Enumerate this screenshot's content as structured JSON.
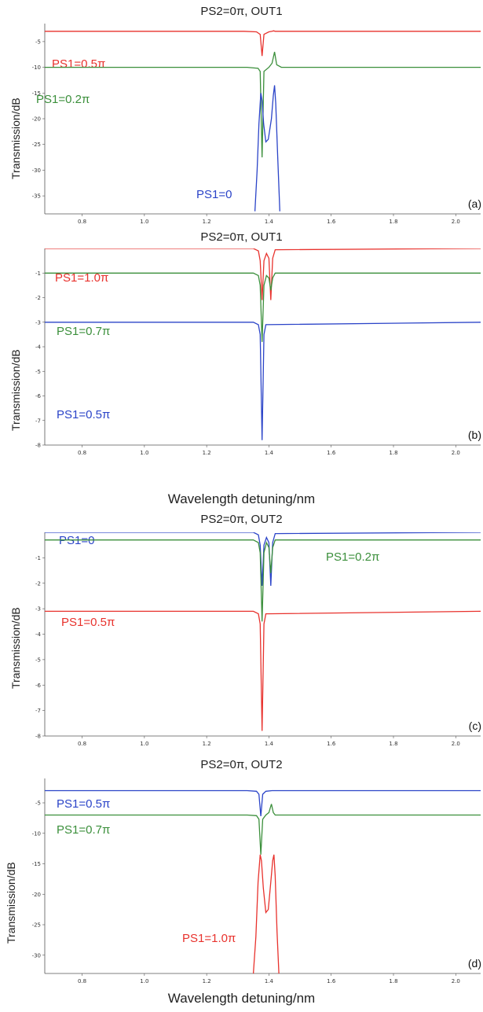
{
  "xlabel": "Wavelength detuning/nm",
  "chart_data": [
    {
      "type": "line",
      "title": "PS2=0π, OUT1",
      "ylabel": "Transmission/dB",
      "xlabel": "",
      "letter": "(a)",
      "xlim": [
        0.68,
        2.08
      ],
      "ylim": [
        -38.5,
        -1.5
      ],
      "xticks": [
        "0.8",
        "1.0",
        "1.2",
        "1.4",
        "1.6",
        "1.8",
        "2.0"
      ],
      "yticks": [
        "-5",
        "-10",
        "-15",
        "-20",
        "-25",
        "-30",
        "-35"
      ],
      "series": [
        {
          "name": "PS1=0.5π",
          "color": "#e8322d",
          "x": [
            0.68,
            1.32,
            1.36,
            1.372,
            1.378,
            1.384,
            1.4,
            1.41,
            1.415,
            1.42,
            1.44,
            2.08
          ],
          "y": [
            -3.0,
            -3.0,
            -3.1,
            -3.6,
            -7.8,
            -3.6,
            -3.1,
            -3.0,
            -2.9,
            -3.0,
            -3.0,
            -3.0
          ]
        },
        {
          "name": "PS1=0.2π",
          "color": "#3b8f3b",
          "x": [
            0.68,
            1.33,
            1.365,
            1.372,
            1.378,
            1.384,
            1.4,
            1.41,
            1.418,
            1.425,
            1.44,
            2.08
          ],
          "y": [
            -10.0,
            -10.0,
            -10.2,
            -10.8,
            -27.5,
            -10.8,
            -10.0,
            -9.2,
            -7.0,
            -9.5,
            -10.0,
            -10.0
          ]
        },
        {
          "name": "PS1=0",
          "color": "#2b44c8",
          "x": [
            1.355,
            1.362,
            1.368,
            1.374,
            1.378,
            1.383,
            1.39,
            1.398,
            1.408,
            1.414,
            1.418,
            1.422,
            1.428,
            1.435
          ],
          "y": [
            -38.0,
            -30.0,
            -21.0,
            -15.0,
            -16.5,
            -21.0,
            -24.5,
            -24.0,
            -20.0,
            -15.5,
            -13.5,
            -17.0,
            -27.0,
            -38.0
          ]
        }
      ]
    },
    {
      "type": "line",
      "title": "PS2=0π, OUT1",
      "ylabel": "Transmission/dB",
      "xlabel": "",
      "letter": "(b)",
      "xlim": [
        0.68,
        2.08
      ],
      "ylim": [
        -8.0,
        0.0
      ],
      "xticks": [
        "0.8",
        "1.0",
        "1.2",
        "1.4",
        "1.6",
        "1.8",
        "2.0"
      ],
      "yticks": [
        "-1",
        "-2",
        "-3",
        "-4",
        "-5",
        "-6",
        "-7",
        "-8"
      ],
      "series": [
        {
          "name": "PS1=1.0π",
          "color": "#e8322d",
          "x": [
            0.68,
            1.35,
            1.366,
            1.372,
            1.378,
            1.384,
            1.392,
            1.4,
            1.406,
            1.412,
            1.42,
            2.08
          ],
          "y": [
            0.0,
            0.0,
            -0.1,
            -0.5,
            -2.1,
            -0.5,
            -0.2,
            -0.4,
            -2.1,
            -0.4,
            -0.05,
            0.0
          ]
        },
        {
          "name": "PS1=0.7π",
          "color": "#3b8f3b",
          "x": [
            0.68,
            1.35,
            1.366,
            1.372,
            1.378,
            1.384,
            1.392,
            1.4,
            1.406,
            1.412,
            1.42,
            2.08
          ],
          "y": [
            -1.0,
            -1.0,
            -1.1,
            -1.5,
            -3.8,
            -1.5,
            -1.1,
            -1.2,
            -1.7,
            -1.2,
            -1.0,
            -1.0
          ]
        },
        {
          "name": "PS1=0.5π",
          "color": "#2b44c8",
          "x": [
            0.68,
            1.35,
            1.366,
            1.372,
            1.378,
            1.384,
            1.39,
            2.08
          ],
          "y": [
            -3.0,
            -3.0,
            -3.1,
            -3.5,
            -7.8,
            -3.5,
            -3.1,
            -3.0
          ]
        }
      ]
    },
    {
      "type": "line",
      "title": "PS2=0π, OUT2",
      "ylabel": "Transmission/dB",
      "xlabel": "",
      "letter": "(c)",
      "xlim": [
        0.68,
        2.08
      ],
      "ylim": [
        -8.0,
        0.0
      ],
      "xticks": [
        "0.8",
        "1.0",
        "1.2",
        "1.4",
        "1.6",
        "1.8",
        "2.0"
      ],
      "yticks": [
        "-1",
        "-2",
        "-3",
        "-4",
        "-5",
        "-6",
        "-7",
        "-8"
      ],
      "series": [
        {
          "name": "PS1=0",
          "color": "#2b44c8",
          "x": [
            0.68,
            1.35,
            1.366,
            1.372,
            1.378,
            1.384,
            1.392,
            1.4,
            1.406,
            1.412,
            1.42,
            2.08
          ],
          "y": [
            0.0,
            0.0,
            -0.1,
            -0.5,
            -2.1,
            -0.5,
            -0.2,
            -0.4,
            -2.1,
            -0.4,
            -0.05,
            0.0
          ]
        },
        {
          "name": "PS1=0.2π",
          "color": "#3b8f3b",
          "x": [
            0.68,
            1.35,
            1.366,
            1.372,
            1.378,
            1.384,
            1.392,
            1.4,
            1.406,
            1.412,
            1.42,
            2.08
          ],
          "y": [
            -0.3,
            -0.3,
            -0.4,
            -0.8,
            -3.5,
            -0.8,
            -0.4,
            -0.6,
            -1.6,
            -0.6,
            -0.3,
            -0.3
          ]
        },
        {
          "name": "PS1=0.5π",
          "color": "#e8322d",
          "x": [
            0.68,
            1.35,
            1.366,
            1.372,
            1.378,
            1.384,
            1.39,
            2.08
          ],
          "y": [
            -3.1,
            -3.1,
            -3.2,
            -3.6,
            -7.8,
            -3.6,
            -3.2,
            -3.1
          ]
        }
      ]
    },
    {
      "type": "line",
      "title": "PS2=0π, OUT2",
      "ylabel": "Transmission/dB",
      "xlabel": "Wavelength detuning/nm",
      "letter": "(d)",
      "xlim": [
        0.68,
        2.08
      ],
      "ylim": [
        -33.0,
        -1.0
      ],
      "xticks": [
        "0.8",
        "1.0",
        "1.2",
        "1.4",
        "1.6",
        "1.8",
        "2.0"
      ],
      "yticks": [
        "-5",
        "-10",
        "-15",
        "-20",
        "-25",
        "-30"
      ],
      "series": [
        {
          "name": "PS1=0.5π",
          "color": "#2b44c8",
          "x": [
            0.68,
            1.33,
            1.36,
            1.368,
            1.374,
            1.38,
            1.39,
            1.41,
            2.08
          ],
          "y": [
            -3.0,
            -3.0,
            -3.1,
            -3.6,
            -7.2,
            -3.6,
            -3.1,
            -3.0,
            -3.0
          ]
        },
        {
          "name": "PS1=0.7π",
          "color": "#3b8f3b",
          "x": [
            0.68,
            1.33,
            1.36,
            1.368,
            1.374,
            1.38,
            1.39,
            1.4,
            1.408,
            1.414,
            1.42,
            1.44,
            2.08
          ],
          "y": [
            -7.0,
            -7.0,
            -7.1,
            -7.7,
            -13.5,
            -7.7,
            -7.0,
            -6.6,
            -5.2,
            -6.6,
            -7.0,
            -7.0,
            -7.0
          ]
        },
        {
          "name": "PS1=1.0π",
          "color": "#e8322d",
          "x": [
            1.35,
            1.358,
            1.365,
            1.372,
            1.376,
            1.382,
            1.39,
            1.398,
            1.406,
            1.412,
            1.416,
            1.42,
            1.426,
            1.432
          ],
          "y": [
            -33.0,
            -27.0,
            -18.0,
            -13.5,
            -14.5,
            -19.0,
            -23.0,
            -22.5,
            -18.0,
            -14.5,
            -13.5,
            -17.0,
            -26.0,
            -33.0
          ]
        }
      ]
    }
  ]
}
